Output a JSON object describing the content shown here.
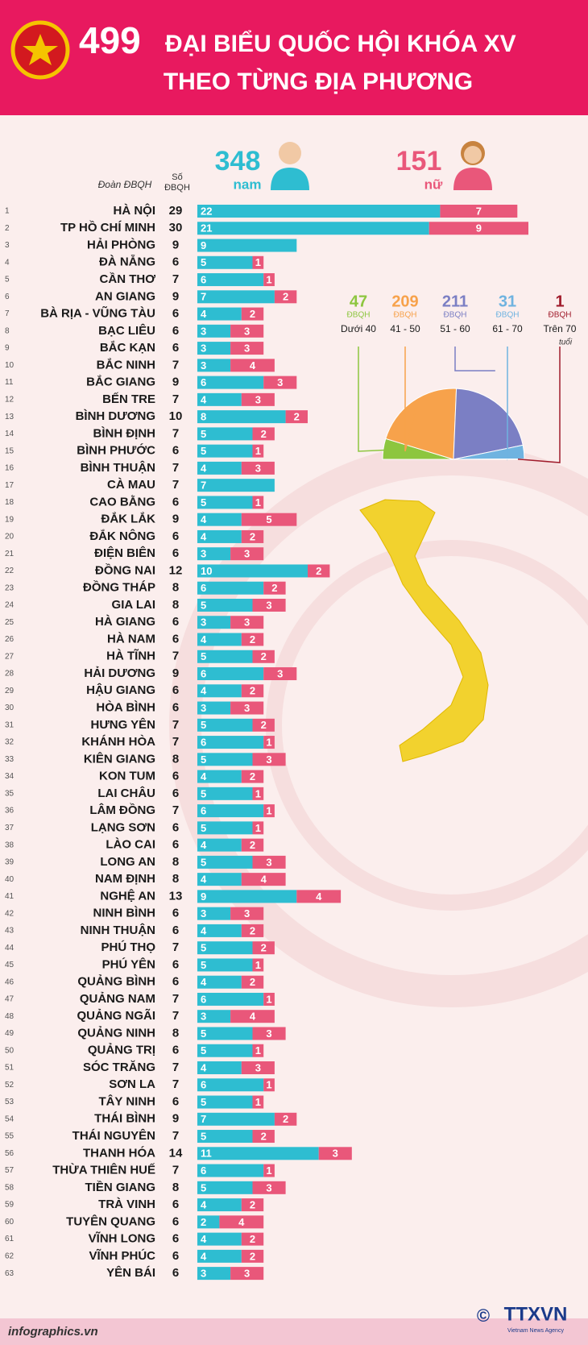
{
  "header": {
    "count": "499",
    "title_line1": "ĐẠI BIỂU QUỐC HỘI KHÓA XV",
    "title_line2": "THEO TỪNG ĐỊA PHƯƠNG"
  },
  "summary": {
    "male_count": 348,
    "female_count": 151
  },
  "chart_data": [
    {
      "type": "bar",
      "orientation": "horizontal",
      "stacked": true,
      "category_header": "Đoàn ĐBQH",
      "total_header": "Số ĐBQH",
      "row_numbers": [
        1,
        2,
        3,
        4,
        5,
        6,
        7,
        8,
        9,
        10,
        11,
        12,
        13,
        14,
        15,
        16,
        17,
        18,
        19,
        20,
        21,
        22,
        23,
        24,
        25,
        26,
        27,
        28,
        29,
        30,
        31,
        32,
        33,
        34,
        35,
        36,
        37,
        38,
        39,
        40,
        41,
        42,
        43,
        44,
        45,
        46,
        47,
        48,
        49,
        50,
        51,
        52,
        53,
        54,
        55,
        56,
        57,
        58,
        59,
        60,
        61,
        62,
        63
      ],
      "categories": [
        "HÀ NỘI",
        "TP HỒ CHÍ MINH",
        "HẢI PHÒNG",
        "ĐÀ NẴNG",
        "CẦN THƠ",
        "AN GIANG",
        "BÀ RỊA - VŨNG TÀU",
        "BẠC LIÊU",
        "BẮC KẠN",
        "BẮC NINH",
        "BẮC GIANG",
        "BẾN TRE",
        "BÌNH DƯƠNG",
        "BÌNH ĐỊNH",
        "BÌNH PHƯỚC",
        "BÌNH THUẬN",
        "CÀ MAU",
        "CAO BẰNG",
        "ĐẮK LẮK",
        "ĐẮK NÔNG",
        "ĐIỆN BIÊN",
        "ĐỒNG NAI",
        "ĐỒNG THÁP",
        "GIA LAI",
        "HÀ GIANG",
        "HÀ NAM",
        "HÀ TĨNH",
        "HẢI DƯƠNG",
        "HẬU GIANG",
        "HÒA BÌNH",
        "HƯNG YÊN",
        "KHÁNH HÒA",
        "KIÊN GIANG",
        "KON TUM",
        "LAI CHÂU",
        "LÂM ĐỒNG",
        "LẠNG SƠN",
        "LÀO CAI",
        "LONG AN",
        "NAM ĐỊNH",
        "NGHỆ AN",
        "NINH BÌNH",
        "NINH THUẬN",
        "PHÚ THỌ",
        "PHÚ YÊN",
        "QUẢNG BÌNH",
        "QUẢNG NAM",
        "QUẢNG NGÃI",
        "QUẢNG NINH",
        "QUẢNG TRỊ",
        "SÓC TRĂNG",
        "SƠN LA",
        "TÂY NINH",
        "THÁI BÌNH",
        "THÁI NGUYÊN",
        "THANH HÓA",
        "THỪA THIÊN HUẾ",
        "TIỀN GIANG",
        "TRÀ VINH",
        "TUYÊN QUANG",
        "VĨNH LONG",
        "VĨNH PHÚC",
        "YÊN BÁI"
      ],
      "totals": [
        29,
        30,
        9,
        6,
        7,
        9,
        6,
        6,
        6,
        7,
        9,
        7,
        10,
        7,
        6,
        7,
        7,
        6,
        9,
        6,
        6,
        12,
        8,
        8,
        6,
        6,
        7,
        9,
        6,
        6,
        7,
        7,
        8,
        6,
        6,
        7,
        6,
        6,
        8,
        8,
        13,
        6,
        6,
        7,
        6,
        6,
        7,
        7,
        8,
        6,
        7,
        7,
        6,
        9,
        7,
        14,
        7,
        8,
        6,
        6,
        6,
        6,
        6
      ],
      "series": [
        {
          "name": "nam",
          "color": "#2ebdd1",
          "values": [
            22,
            21,
            9,
            5,
            6,
            7,
            4,
            3,
            3,
            3,
            6,
            4,
            8,
            5,
            5,
            4,
            7,
            5,
            4,
            4,
            3,
            10,
            6,
            5,
            3,
            4,
            5,
            6,
            4,
            3,
            5,
            6,
            5,
            4,
            5,
            6,
            5,
            4,
            5,
            4,
            9,
            3,
            4,
            5,
            5,
            4,
            6,
            3,
            5,
            5,
            4,
            6,
            5,
            7,
            5,
            11,
            6,
            5,
            4,
            2,
            4,
            4,
            3
          ]
        },
        {
          "name": "nữ",
          "color": "#e9577a",
          "values": [
            7,
            9,
            null,
            1,
            1,
            2,
            2,
            3,
            3,
            4,
            3,
            3,
            2,
            2,
            1,
            3,
            null,
            1,
            5,
            2,
            3,
            2,
            2,
            3,
            3,
            2,
            2,
            3,
            2,
            3,
            2,
            1,
            3,
            2,
            1,
            1,
            1,
            2,
            3,
            4,
            4,
            3,
            2,
            2,
            1,
            2,
            1,
            4,
            3,
            1,
            3,
            1,
            1,
            2,
            2,
            3,
            1,
            3,
            2,
            4,
            2,
            2,
            3
          ]
        }
      ]
    },
    {
      "type": "pie",
      "semicircle": true,
      "categories": [
        "Dưới 40",
        "41 - 50",
        "51 - 60",
        "61 - 70",
        "Trên 70"
      ],
      "values": [
        47,
        209,
        211,
        31,
        1
      ],
      "colors": [
        "#8dc63f",
        "#f7a24b",
        "#7b7fc4",
        "#6fb3e0",
        "#a01c2c"
      ],
      "unit_label": "ĐBQH",
      "category_suffix": "tuổi"
    }
  ],
  "footer": {
    "source": "infographics.vn",
    "copyright": "©",
    "agency": "TTXVN",
    "agency_subtitle": "Vietnam News Agency"
  }
}
